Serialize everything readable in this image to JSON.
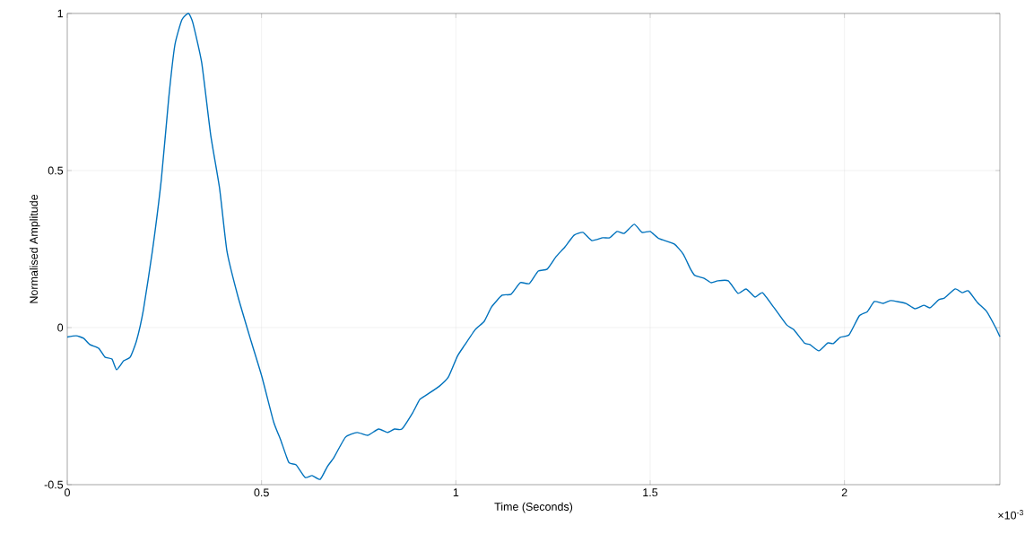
{
  "chart_data": {
    "type": "line",
    "xlabel": "Time (Seconds)",
    "ylabel": "Normalised Amplitude",
    "annotations": [
      "×10$^{-3}$"
    ],
    "x": [
      0,
      0.023,
      0.042,
      0.058,
      0.081,
      0.097,
      0.115,
      0.127,
      0.145,
      0.162,
      0.178,
      0.196,
      0.219,
      0.242,
      0.261,
      0.277,
      0.295,
      0.312,
      0.323,
      0.346,
      0.369,
      0.392,
      0.411,
      0.439,
      0.473,
      0.501,
      0.531,
      0.549,
      0.57,
      0.589,
      0.612,
      0.63,
      0.651,
      0.669,
      0.686,
      0.716,
      0.746,
      0.773,
      0.801,
      0.824,
      0.842,
      0.861,
      0.889,
      0.907,
      0.925,
      0.958,
      0.981,
      1.004,
      1.022,
      1.05,
      1.073,
      1.092,
      1.119,
      1.142,
      1.166,
      1.189,
      1.212,
      1.235,
      1.258,
      1.281,
      1.304,
      1.327,
      1.35,
      1.378,
      1.396,
      1.415,
      1.433,
      1.459,
      1.479,
      1.5,
      1.523,
      1.562,
      1.585,
      1.604,
      1.615,
      1.639,
      1.657,
      1.674,
      1.701,
      1.726,
      1.747,
      1.77,
      1.789,
      1.819,
      1.851,
      1.869,
      1.897,
      1.911,
      1.934,
      1.957,
      1.971,
      1.989,
      2.012,
      2.038,
      2.059,
      2.077,
      2.1,
      2.119,
      2.158,
      2.181,
      2.204,
      2.22,
      2.243,
      2.257,
      2.285,
      2.303,
      2.319,
      2.342,
      2.366,
      2.389,
      2.4
    ],
    "values": [
      -0.03,
      -0.026,
      -0.034,
      -0.054,
      -0.066,
      -0.094,
      -0.1,
      -0.134,
      -0.106,
      -0.094,
      -0.043,
      0.057,
      0.243,
      0.471,
      0.729,
      0.9,
      0.98,
      1.0,
      0.971,
      0.843,
      0.614,
      0.443,
      0.243,
      0.1,
      -0.043,
      -0.157,
      -0.3,
      -0.357,
      -0.429,
      -0.437,
      -0.477,
      -0.471,
      -0.483,
      -0.443,
      -0.414,
      -0.349,
      -0.334,
      -0.343,
      -0.323,
      -0.334,
      -0.323,
      -0.323,
      -0.271,
      -0.229,
      -0.214,
      -0.186,
      -0.157,
      -0.091,
      -0.057,
      -0.006,
      0.02,
      0.066,
      0.103,
      0.106,
      0.143,
      0.14,
      0.18,
      0.186,
      0.226,
      0.257,
      0.294,
      0.303,
      0.277,
      0.286,
      0.286,
      0.306,
      0.3,
      0.329,
      0.303,
      0.306,
      0.283,
      0.266,
      0.234,
      0.186,
      0.166,
      0.157,
      0.143,
      0.149,
      0.149,
      0.109,
      0.123,
      0.097,
      0.111,
      0.063,
      0.009,
      -0.006,
      -0.049,
      -0.054,
      -0.074,
      -0.049,
      -0.051,
      -0.031,
      -0.023,
      0.037,
      0.051,
      0.083,
      0.077,
      0.086,
      0.077,
      0.06,
      0.071,
      0.063,
      0.089,
      0.094,
      0.123,
      0.111,
      0.117,
      0.08,
      0.051,
      0,
      -0.029
    ],
    "color": "#0072bd",
    "xlim": [
      0,
      2.4
    ],
    "ylim": [
      -0.5,
      1
    ],
    "xticks": [
      0,
      0.5,
      1,
      1.5,
      2
    ],
    "yticks": [
      -0.5,
      0,
      0.5,
      1
    ],
    "grid": true
  }
}
